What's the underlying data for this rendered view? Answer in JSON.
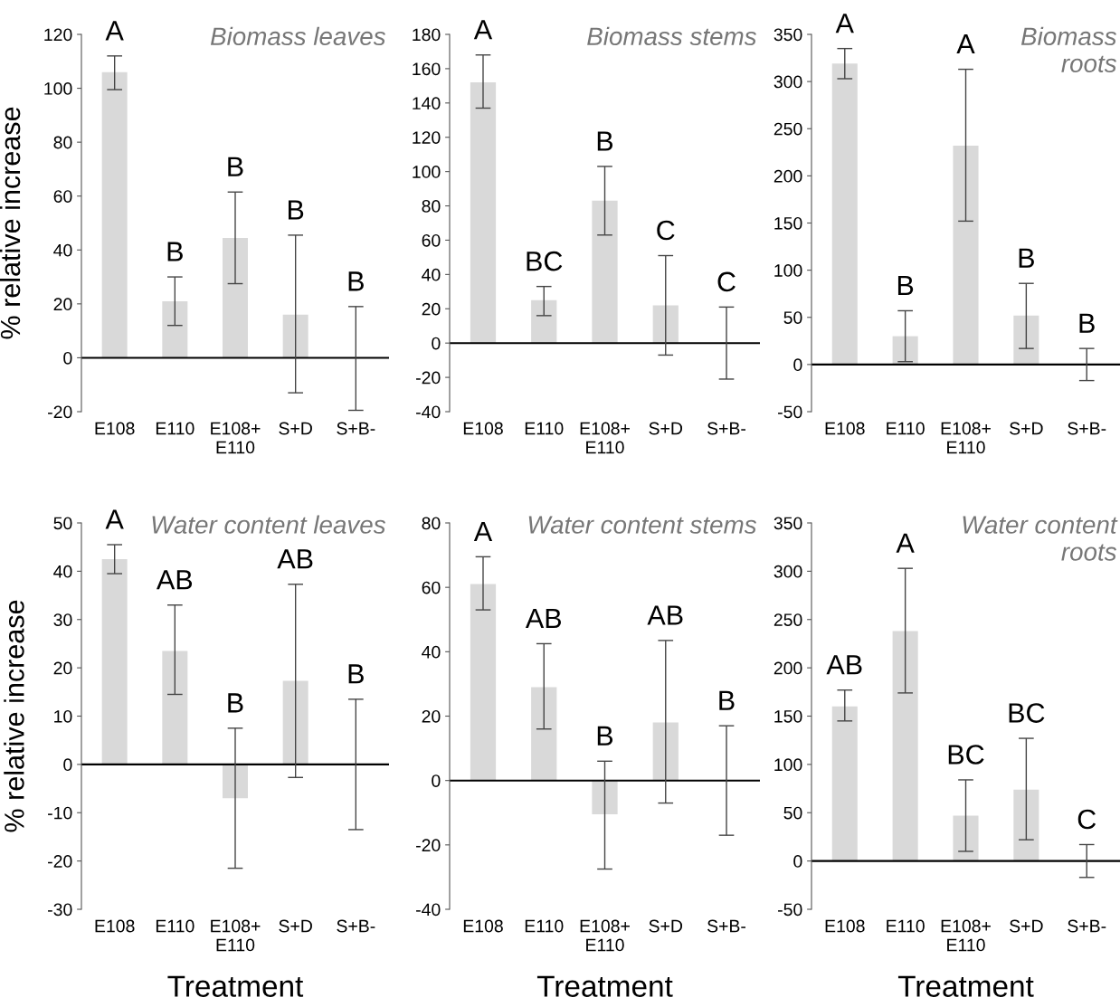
{
  "chart_data": [
    {
      "type": "bar",
      "title": "Biomass leaves",
      "ylabel": "% relative increase",
      "categories": [
        "E108",
        "E110",
        "E108+\nE110",
        "S+D",
        "S+B-"
      ],
      "color": "#d9d9d9",
      "values": [
        106,
        21,
        44.5,
        16,
        0
      ],
      "errors": [
        [
          99.5,
          112
        ],
        [
          12,
          30
        ],
        [
          27.5,
          61.5
        ],
        [
          -13,
          45.5
        ],
        [
          -19.5,
          19
        ]
      ],
      "ylim": [
        -20,
        120
      ],
      "yticks": [
        -20,
        0,
        20,
        40,
        60,
        80,
        100,
        120
      ],
      "grid": false,
      "ref_lines": [
        {
          "axis": "y",
          "value": 0,
          "color": "#000000"
        }
      ],
      "annotations": [
        {
          "text": "A",
          "x": "E108",
          "y": 112
        },
        {
          "text": "B",
          "x": "E110",
          "y": 30
        },
        {
          "text": "B",
          "x": "E108+\nE110",
          "y": 61.5
        },
        {
          "text": "B",
          "x": "S+D",
          "y": 45.5
        },
        {
          "text": "B",
          "x": "S+B-",
          "y": 19
        }
      ]
    },
    {
      "type": "bar",
      "title": "Biomass stems",
      "categories": [
        "E108",
        "E110",
        "E108+\nE110",
        "S+D",
        "S+B-"
      ],
      "color": "#d9d9d9",
      "values": [
        152,
        25,
        83,
        22,
        0
      ],
      "errors": [
        [
          137,
          168
        ],
        [
          16,
          33
        ],
        [
          63,
          103
        ],
        [
          -7,
          51
        ],
        [
          -21,
          21
        ]
      ],
      "ylim": [
        -40,
        180
      ],
      "yticks": [
        -40,
        -20,
        0,
        20,
        40,
        60,
        80,
        100,
        120,
        140,
        160,
        180
      ],
      "grid": false,
      "ref_lines": [
        {
          "axis": "y",
          "value": 0,
          "color": "#000000"
        }
      ],
      "annotations": [
        {
          "text": "A",
          "x": "E108",
          "y": 168
        },
        {
          "text": "BC",
          "x": "E110",
          "y": 33
        },
        {
          "text": "B",
          "x": "E108+\nE110",
          "y": 103
        },
        {
          "text": "C",
          "x": "S+D",
          "y": 51
        },
        {
          "text": "C",
          "x": "S+B-",
          "y": 21
        }
      ]
    },
    {
      "type": "bar",
      "title": "Biomass\nroots",
      "categories": [
        "E108",
        "E110",
        "E108+\nE110",
        "S+D",
        "S+B-"
      ],
      "color": "#d9d9d9",
      "values": [
        319,
        30,
        232,
        52,
        0
      ],
      "errors": [
        [
          303,
          335
        ],
        [
          3,
          57
        ],
        [
          152,
          313
        ],
        [
          17,
          86
        ],
        [
          -17,
          17
        ]
      ],
      "ylim": [
        -50,
        350
      ],
      "yticks": [
        -50,
        0,
        50,
        100,
        150,
        200,
        250,
        300,
        350
      ],
      "grid": false,
      "ref_lines": [
        {
          "axis": "y",
          "value": 0,
          "color": "#000000"
        }
      ],
      "annotations": [
        {
          "text": "A",
          "x": "E108",
          "y": 335
        },
        {
          "text": "B",
          "x": "E110",
          "y": 57
        },
        {
          "text": "A",
          "x": "E108+\nE110",
          "y": 313
        },
        {
          "text": "B",
          "x": "S+D",
          "y": 86
        },
        {
          "text": "B",
          "x": "S+B-",
          "y": 17
        }
      ]
    },
    {
      "type": "bar",
      "title": "Water content leaves",
      "ylabel": "% relative increase",
      "xlabel": "Treatment",
      "categories": [
        "E108",
        "E110",
        "E108+\nE110",
        "S+D",
        "S+B-"
      ],
      "color": "#d9d9d9",
      "values": [
        42.5,
        23.5,
        -7,
        17.3,
        0
      ],
      "errors": [
        [
          39.5,
          45.5
        ],
        [
          14.5,
          33
        ],
        [
          -21.5,
          7.5
        ],
        [
          -2.7,
          37.3
        ],
        [
          -13.5,
          13.5
        ]
      ],
      "ylim": [
        -30,
        50
      ],
      "yticks": [
        -30,
        -20,
        -10,
        0,
        10,
        20,
        30,
        40,
        50
      ],
      "grid": false,
      "ref_lines": [
        {
          "axis": "y",
          "value": 0,
          "color": "#000000"
        }
      ],
      "annotations": [
        {
          "text": "A",
          "x": "E108",
          "y": 45.5
        },
        {
          "text": "AB",
          "x": "E110",
          "y": 33
        },
        {
          "text": "B",
          "x": "E108+\nE110",
          "y": 7.5
        },
        {
          "text": "AB",
          "x": "S+D",
          "y": 37.3
        },
        {
          "text": "B",
          "x": "S+B-",
          "y": 13.5
        }
      ]
    },
    {
      "type": "bar",
      "title": "Water content stems",
      "xlabel": "Treatment",
      "categories": [
        "E108",
        "E110",
        "E108+\nE110",
        "S+D",
        "S+B-"
      ],
      "color": "#d9d9d9",
      "values": [
        61,
        29,
        -10.5,
        18,
        0
      ],
      "errors": [
        [
          53,
          69.5
        ],
        [
          16,
          42.5
        ],
        [
          -27.5,
          6
        ],
        [
          -7,
          43.5
        ],
        [
          -17,
          17
        ]
      ],
      "ylim": [
        -40,
        80
      ],
      "yticks": [
        -40,
        -20,
        0,
        20,
        40,
        60,
        80
      ],
      "grid": false,
      "ref_lines": [
        {
          "axis": "y",
          "value": 0,
          "color": "#000000"
        }
      ],
      "annotations": [
        {
          "text": "A",
          "x": "E108",
          "y": 69.5
        },
        {
          "text": "AB",
          "x": "E110",
          "y": 42.5
        },
        {
          "text": "B",
          "x": "E108+\nE110",
          "y": 6
        },
        {
          "text": "AB",
          "x": "S+D",
          "y": 43.5
        },
        {
          "text": "B",
          "x": "S+B-",
          "y": 17
        }
      ]
    },
    {
      "type": "bar",
      "title": "Water content\nroots",
      "xlabel": "Treatment",
      "categories": [
        "E108",
        "E110",
        "E108+\nE110",
        "S+D",
        "S+B-"
      ],
      "color": "#d9d9d9",
      "values": [
        160,
        238,
        47,
        74,
        0
      ],
      "errors": [
        [
          145,
          177
        ],
        [
          174,
          303
        ],
        [
          10,
          84
        ],
        [
          22,
          127
        ],
        [
          -17,
          17
        ]
      ],
      "ylim": [
        -50,
        350
      ],
      "yticks": [
        -50,
        0,
        50,
        100,
        150,
        200,
        250,
        300,
        350
      ],
      "grid": false,
      "ref_lines": [
        {
          "axis": "y",
          "value": 0,
          "color": "#000000"
        }
      ],
      "annotations": [
        {
          "text": "AB",
          "x": "E108",
          "y": 177
        },
        {
          "text": "A",
          "x": "E110",
          "y": 303
        },
        {
          "text": "BC",
          "x": "E108+\nE110",
          "y": 84
        },
        {
          "text": "BC",
          "x": "S+D",
          "y": 127
        },
        {
          "text": "C",
          "x": "S+B-",
          "y": 17
        }
      ]
    }
  ]
}
